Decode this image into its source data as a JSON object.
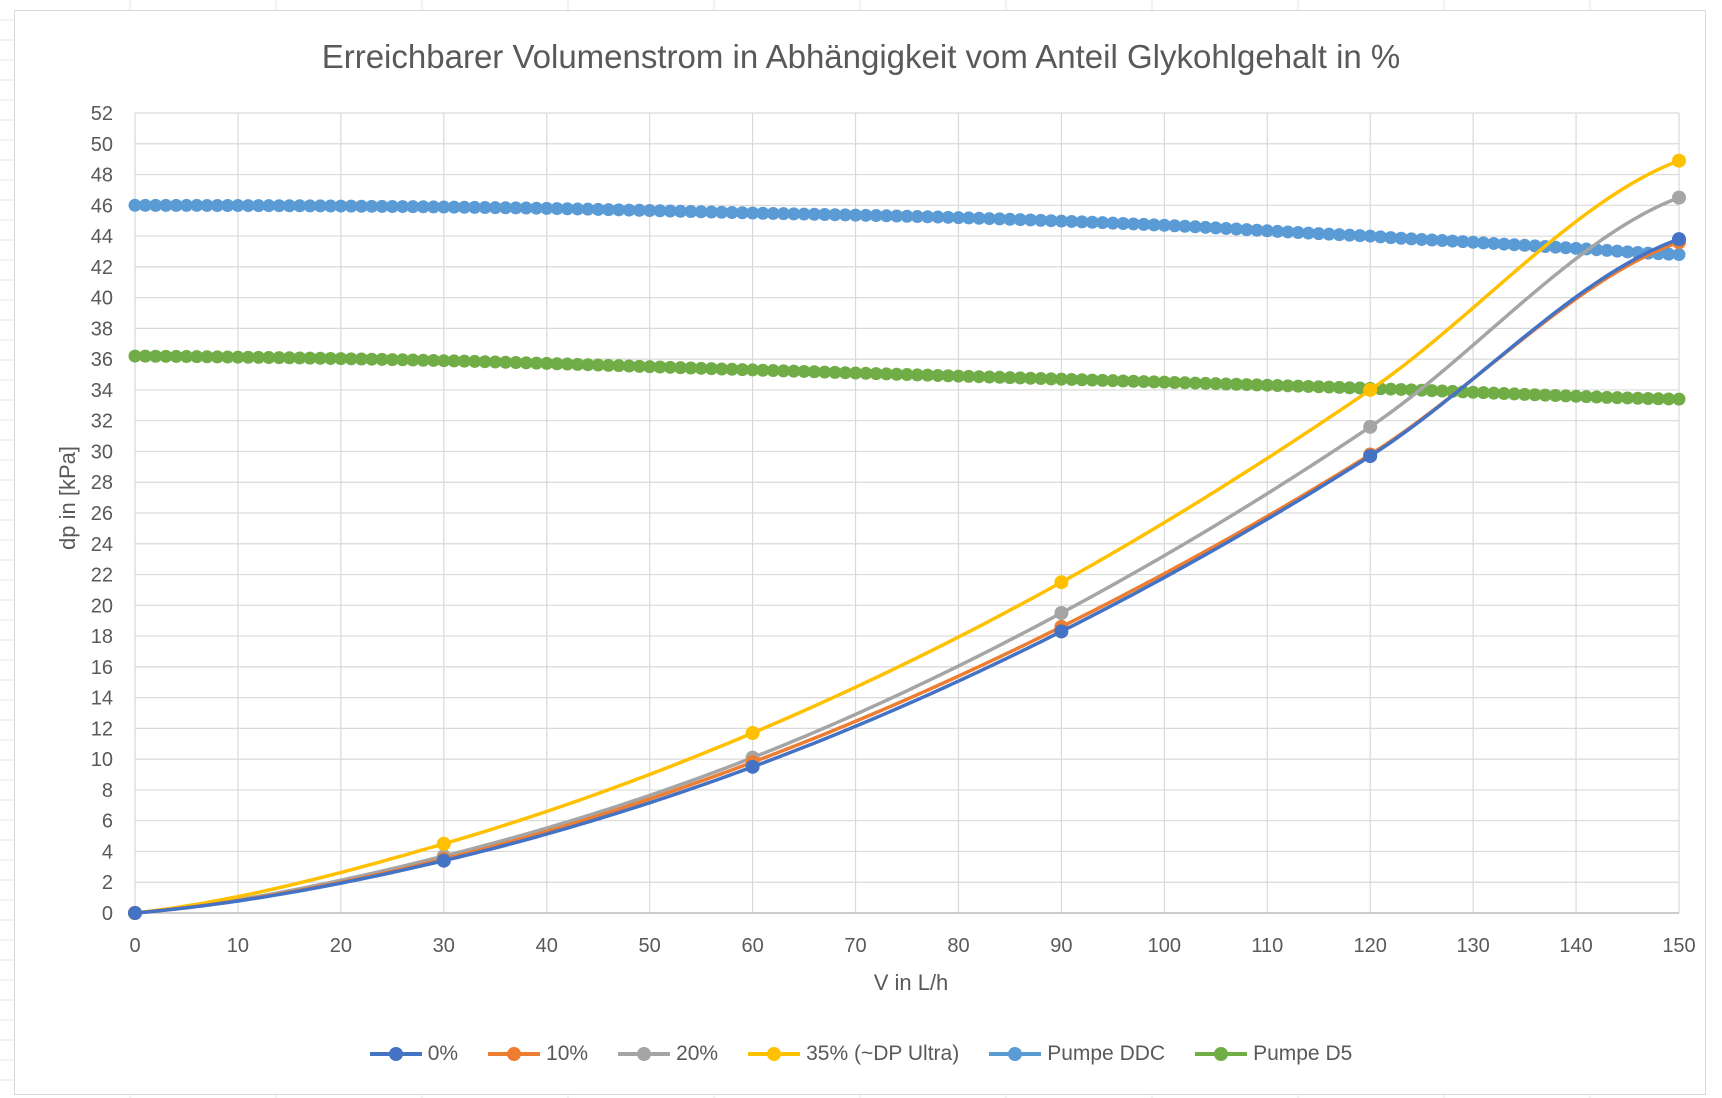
{
  "chart_data": {
    "type": "line",
    "title": "Erreichbarer Volumenstrom in Abhängigkeit vom Anteil Glykohlgehalt in %",
    "xlabel": "V in L/h",
    "ylabel": "dp in [kPa]",
    "xlim": [
      0,
      150
    ],
    "ylim": [
      0,
      52
    ],
    "xticks": [
      "0",
      "10",
      "20",
      "30",
      "40",
      "50",
      "60",
      "70",
      "80",
      "90",
      "100",
      "110",
      "120",
      "130",
      "140",
      "150"
    ],
    "yticks": [
      "0",
      "2",
      "4",
      "6",
      "8",
      "10",
      "12",
      "14",
      "16",
      "18",
      "20",
      "22",
      "24",
      "26",
      "28",
      "30",
      "32",
      "34",
      "36",
      "38",
      "40",
      "42",
      "44",
      "46",
      "48",
      "50",
      "52"
    ],
    "grid": true,
    "legend_position": "bottom",
    "series": [
      {
        "name": "0%",
        "color": "#4472c4",
        "x": [
          0,
          30,
          60,
          90,
          120,
          150
        ],
        "y": [
          0,
          3.4,
          9.5,
          18.3,
          29.7,
          43.8
        ]
      },
      {
        "name": "10%",
        "color": "#ed7d31",
        "x": [
          0,
          30,
          60,
          90,
          120,
          150
        ],
        "y": [
          0,
          3.5,
          9.8,
          18.6,
          29.8,
          43.6
        ]
      },
      {
        "name": "20%",
        "color": "#a5a5a5",
        "x": [
          0,
          30,
          60,
          90,
          120,
          150
        ],
        "y": [
          0,
          3.7,
          10.1,
          19.5,
          31.6,
          46.5
        ]
      },
      {
        "name": "35% (~DP Ultra)",
        "color": "#ffc000",
        "x": [
          0,
          30,
          60,
          90,
          120,
          150
        ],
        "y": [
          0,
          4.5,
          11.7,
          21.5,
          34.0,
          48.9
        ]
      },
      {
        "name": "Pumpe DDC",
        "color": "#5b9bd5",
        "x": [
          0,
          20,
          40,
          60,
          80,
          100,
          120,
          130,
          140,
          150
        ],
        "y": [
          46.0,
          45.95,
          45.8,
          45.5,
          45.2,
          44.7,
          44.0,
          43.6,
          43.2,
          42.8
        ]
      },
      {
        "name": "Pumpe D5",
        "color": "#70ad47",
        "x": [
          0,
          30,
          60,
          90,
          120,
          150
        ],
        "y": [
          36.2,
          35.9,
          35.3,
          34.7,
          34.1,
          33.4
        ]
      }
    ]
  }
}
